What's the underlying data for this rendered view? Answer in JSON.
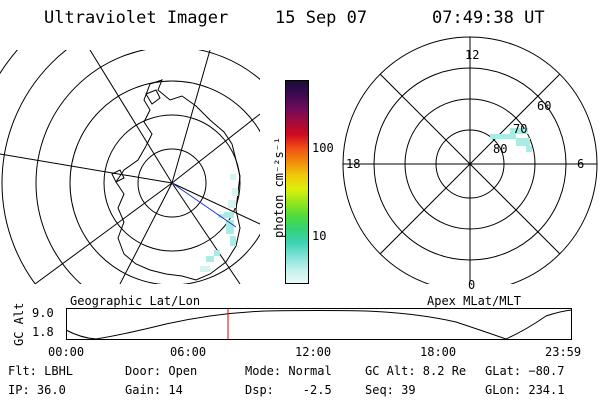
{
  "header": {
    "title": "Ultraviolet Imager",
    "date": "15 Sep 07",
    "time": "07:49:38 UT"
  },
  "geo_panel": {
    "label": "Geographic Lat/Lon"
  },
  "mag_panel": {
    "label": "Apex MLat/MLT",
    "mlt_labels": {
      "top": "12",
      "left": "18",
      "right": "6",
      "bottom": "0"
    },
    "lat_labels": [
      "60",
      "70",
      "80"
    ]
  },
  "colorbar": {
    "unit_label": "photon cm⁻²s⁻¹",
    "ticks": [
      "100",
      "10"
    ],
    "colors": [
      "#1a0a3c",
      "#3c0a50",
      "#6e0a5a",
      "#a00a3c",
      "#d20a1e",
      "#f05014",
      "#f08c0a",
      "#f0c80a",
      "#dcf00a",
      "#96e61e",
      "#50dc3c",
      "#32d278",
      "#3cd2b4",
      "#82e1d7",
      "#c3f0eb",
      "#ebfaf8"
    ]
  },
  "altitude_strip": {
    "y_title": "GC Alt",
    "y_ticks": [
      "9.0",
      "1.8"
    ],
    "x_ticks": [
      "00:00",
      "06:00",
      "12:00",
      "18:00",
      "23:59"
    ],
    "current_time_marker": "07:49"
  },
  "status": {
    "filter": "Flt: LBHL",
    "ip": "IP: 36.0",
    "door": "Door: Open",
    "gain": "Gain: 14",
    "mode": "Mode: Normal",
    "dsp": "Dsp:    -2.5",
    "gc_alt": "GC Alt: 8.2 Re",
    "seq": "Seq: 39",
    "glat": "GLat: −80.7",
    "glon": "GLon: 234.1"
  }
}
